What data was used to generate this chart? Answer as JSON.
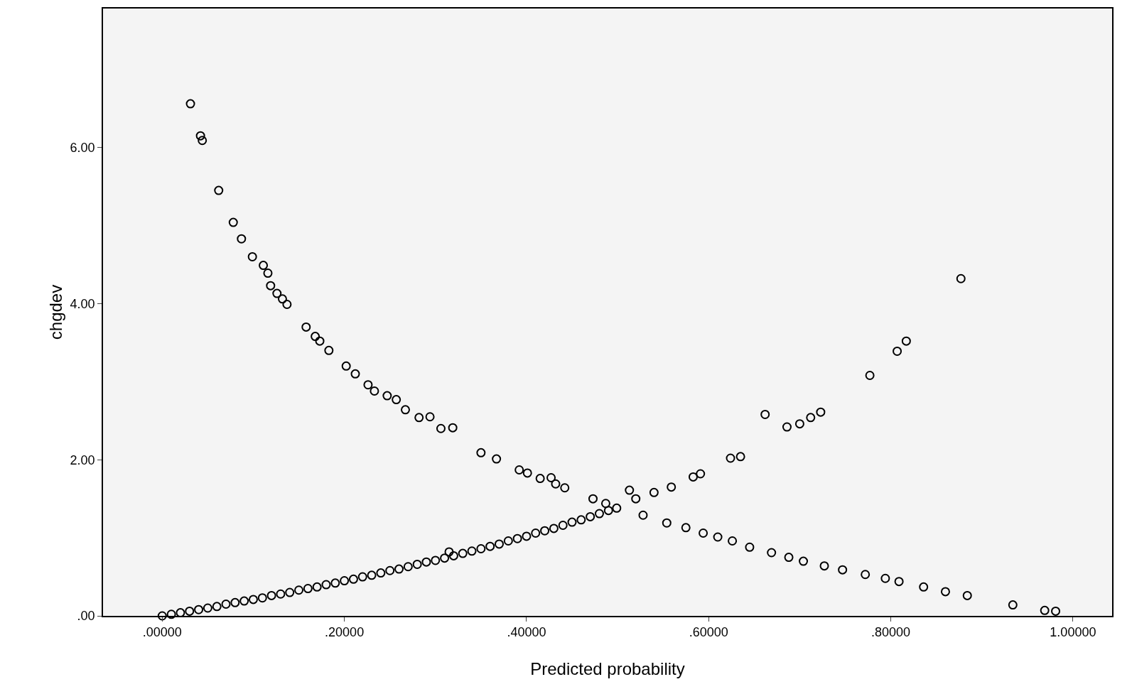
{
  "chart_data": {
    "type": "scatter",
    "xlabel": "Predicted probability",
    "ylabel": "chgdev",
    "x": [
      0.031,
      0.042,
      0.044,
      0.062,
      0.078,
      0.087,
      0.099,
      0.111,
      0.116,
      0.119,
      0.126,
      0.132,
      0.137,
      0.158,
      0.168,
      0.173,
      0.183,
      0.202,
      0.212,
      0.226,
      0.233,
      0.247,
      0.257,
      0.267,
      0.282,
      0.294,
      0.306,
      0.319,
      0.35,
      0.367,
      0.392,
      0.401,
      0.415,
      0.427,
      0.432,
      0.442,
      0.473,
      0.487,
      0.499,
      0.528,
      0.554,
      0.575,
      0.594,
      0.61,
      0.626,
      0.645,
      0.669,
      0.688,
      0.704,
      0.727,
      0.747,
      0.772,
      0.794,
      0.809,
      0.836,
      0.86,
      0.884,
      0.934,
      0.969,
      0.981,
      0.513,
      0.52,
      0.54,
      0.559,
      0.583,
      0.591,
      0.624,
      0.635,
      0.662,
      0.686,
      0.7,
      0.712,
      0.723,
      0.777,
      0.807,
      0.817,
      0.877,
      0.0,
      0.01,
      0.02,
      0.03,
      0.04,
      0.05,
      0.06,
      0.07,
      0.08,
      0.09,
      0.1,
      0.11,
      0.12,
      0.13,
      0.14,
      0.15,
      0.16,
      0.17,
      0.18,
      0.19,
      0.2,
      0.21,
      0.22,
      0.23,
      0.24,
      0.25,
      0.26,
      0.27,
      0.28,
      0.29,
      0.3,
      0.31,
      0.315,
      0.32,
      0.33,
      0.34,
      0.35,
      0.36,
      0.37,
      0.38,
      0.39,
      0.4,
      0.41,
      0.42,
      0.43,
      0.44,
      0.45,
      0.46,
      0.47,
      0.48,
      0.49
    ],
    "series": [
      {
        "color": "#000000",
        "values": [
          6.56,
          6.15,
          6.09,
          5.45,
          5.04,
          4.83,
          4.6,
          4.49,
          4.39,
          4.23,
          4.13,
          4.06,
          3.99,
          3.7,
          3.58,
          3.52,
          3.4,
          3.2,
          3.1,
          2.96,
          2.88,
          2.82,
          2.77,
          2.64,
          2.54,
          2.55,
          2.4,
          2.41,
          2.09,
          2.01,
          1.87,
          1.83,
          1.76,
          1.77,
          1.69,
          1.64,
          1.5,
          1.44,
          1.38,
          1.29,
          1.19,
          1.13,
          1.06,
          1.01,
          0.96,
          0.88,
          0.81,
          0.75,
          0.7,
          0.64,
          0.59,
          0.53,
          0.48,
          0.44,
          0.37,
          0.31,
          0.26,
          0.14,
          0.07,
          0.06,
          1.61,
          1.5,
          1.58,
          1.65,
          1.78,
          1.82,
          2.02,
          2.04,
          2.58,
          2.42,
          2.46,
          2.54,
          2.61,
          3.08,
          3.39,
          3.52,
          4.32,
          0.0,
          0.02,
          0.04,
          0.06,
          0.08,
          0.1,
          0.12,
          0.15,
          0.17,
          0.19,
          0.21,
          0.23,
          0.26,
          0.28,
          0.3,
          0.33,
          0.35,
          0.37,
          0.4,
          0.42,
          0.45,
          0.47,
          0.5,
          0.52,
          0.55,
          0.58,
          0.6,
          0.63,
          0.66,
          0.69,
          0.71,
          0.74,
          0.82,
          0.77,
          0.8,
          0.83,
          0.86,
          0.89,
          0.92,
          0.96,
          0.99,
          1.02,
          1.06,
          1.09,
          1.12,
          1.16,
          1.2,
          1.23,
          1.27,
          1.31,
          1.35
        ]
      }
    ],
    "xlim": [
      -0.065,
      1.043
    ],
    "ylim": [
      0,
      7.78
    ],
    "xticks": [
      {
        "value": 0,
        "label": ".00000"
      },
      {
        "value": 0.2,
        "label": ".20000"
      },
      {
        "value": 0.4,
        "label": ".40000"
      },
      {
        "value": 0.6,
        "label": ".60000"
      },
      {
        "value": 0.8,
        "label": ".80000"
      },
      {
        "value": 1,
        "label": "1.00000"
      }
    ],
    "yticks": [
      {
        "value": 0,
        "label": ".00"
      },
      {
        "value": 2,
        "label": "2.00"
      },
      {
        "value": 4,
        "label": "4.00"
      },
      {
        "value": 6,
        "label": "6.00"
      }
    ],
    "grid": false,
    "legend": false,
    "marker": "circle"
  }
}
